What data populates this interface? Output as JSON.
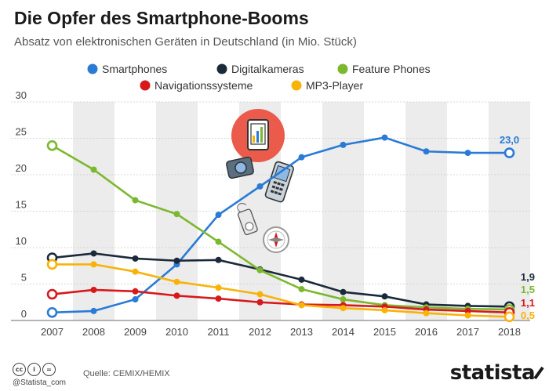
{
  "header": {
    "title": "Die Opfer des Smartphone-Booms",
    "subtitle": "Absatz von elektronischen Geräten in Deutschland (in Mio. Stück)"
  },
  "footer": {
    "source": "Quelle: CEMIX/HEMIX",
    "handle": "@Statista_com",
    "cc_icons": [
      "cc",
      "by",
      "eq"
    ],
    "logo": "statista"
  },
  "colors": {
    "smartphones": "#2a7bd6",
    "digitalkameras": "#1b2a3a",
    "feature_phones": "#7cb82f",
    "navigationssysteme": "#d7191c",
    "mp3_player": "#f9b208",
    "band": "#ececec",
    "grid": "#cccccc"
  },
  "chart_data": {
    "type": "line",
    "title": "Die Opfer des Smartphone-Booms",
    "subtitle": "Absatz von elektronischen Geräten in Deutschland (in Mio. Stück)",
    "x": [
      "2007",
      "2008",
      "2009",
      "2010",
      "2011",
      "2012",
      "2013",
      "2014",
      "2015",
      "2016",
      "2017",
      "2018"
    ],
    "ylim": [
      0,
      30
    ],
    "yticks": [
      0,
      5,
      10,
      15,
      20,
      25,
      30
    ],
    "grid": true,
    "legend": "top",
    "series": [
      {
        "name": "Smartphones",
        "color": "#2a7bd6",
        "values": [
          1.1,
          1.3,
          2.9,
          7.7,
          14.5,
          18.4,
          22.4,
          24.1,
          25.1,
          23.2,
          23.0,
          23.0
        ],
        "end_label": "23,0"
      },
      {
        "name": "Digitalkameras",
        "color": "#1b2a3a",
        "values": [
          8.6,
          9.2,
          8.5,
          8.2,
          8.3,
          7.0,
          5.6,
          3.9,
          3.3,
          2.2,
          2.0,
          1.9
        ],
        "end_label": "1,9"
      },
      {
        "name": "Feature Phones",
        "color": "#7cb82f",
        "values": [
          24.0,
          20.7,
          16.5,
          14.6,
          10.8,
          6.9,
          4.3,
          2.9,
          2.1,
          1.8,
          1.6,
          1.5
        ],
        "end_label": "1,5"
      },
      {
        "name": "Navigationssysteme",
        "color": "#d7191c",
        "values": [
          3.6,
          4.2,
          4.0,
          3.4,
          3.0,
          2.5,
          2.2,
          2.1,
          1.9,
          1.5,
          1.3,
          1.1
        ],
        "end_label": "1,1"
      },
      {
        "name": "MP3-Player",
        "color": "#f9b208",
        "values": [
          7.7,
          7.7,
          6.7,
          5.3,
          4.5,
          3.6,
          2.1,
          1.7,
          1.4,
          1.0,
          0.7,
          0.5
        ],
        "end_label": "0,5"
      }
    ],
    "illustration_icons": [
      "tablet-icon",
      "camera-icon",
      "mobile-phone-icon",
      "mp3-player-icon",
      "compass-icon"
    ]
  }
}
